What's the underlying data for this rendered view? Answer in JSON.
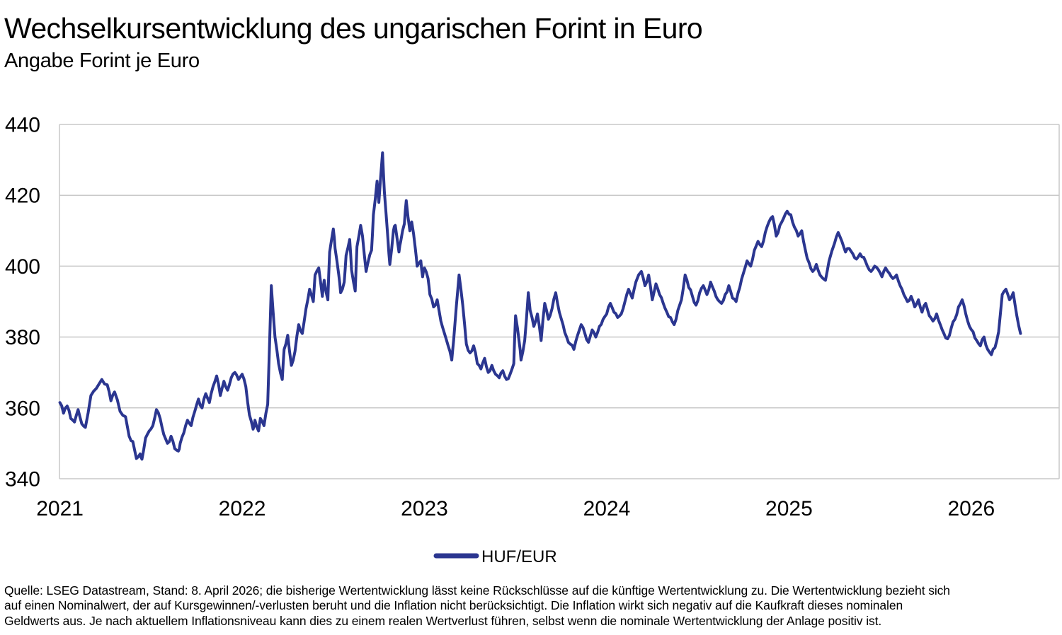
{
  "header": {
    "title": "Wechselkursentwicklung des ungarischen Forint in Euro",
    "subtitle": "Angabe Forint je Euro"
  },
  "legend": {
    "label": "HUF/EUR",
    "position": "bottom"
  },
  "colors": {
    "line": "#2b3690",
    "grid": "#c9c9c9",
    "text": "#000000",
    "background": "#ffffff"
  },
  "footer": {
    "lines": [
      "Quelle: LSEG Datastream, Stand: 8. April 2026; die bisherige Wertentwicklung lässt keine Rückschlüsse auf die künftige Wertentwicklung zu. Die Wertentwicklung bezieht sich",
      "auf einen Nominalwert, der auf Kursgewinnen/-verlusten beruht und die Inflation nicht berücksichtigt. Die Inflation wirkt sich negativ auf die Kaufkraft dieses nominalen",
      "Geldwerts aus. Je nach aktuellem Inflationsniveau kann dies zu einem realen Wertverlust führen, selbst wenn die nominale Wertentwicklung der Anlage positiv ist."
    ]
  },
  "chart_data": {
    "type": "line",
    "title": "Wechselkursentwicklung des ungarischen Forint in Euro",
    "subtitle": "Angabe Forint je Euro",
    "xlabel": "",
    "ylabel": "Forint je Euro",
    "ylim": [
      340,
      440
    ],
    "yticks": [
      340,
      360,
      380,
      400,
      420,
      440
    ],
    "xlim": [
      2021.0,
      2026.48
    ],
    "xticks": [
      2021,
      2022,
      2023,
      2024,
      2025,
      2026
    ],
    "grid": "horizontal",
    "legend_position": "bottom-center",
    "series": [
      {
        "name": "HUF/EUR",
        "color": "#2b3690",
        "points": [
          [
            2021.0,
            361.5
          ],
          [
            2021.02,
            358.5
          ],
          [
            2021.04,
            360.5
          ],
          [
            2021.06,
            357.0
          ],
          [
            2021.08,
            356.0
          ],
          [
            2021.1,
            359.5
          ],
          [
            2021.12,
            355.5
          ],
          [
            2021.14,
            354.5
          ],
          [
            2021.17,
            363.5
          ],
          [
            2021.2,
            365.5
          ],
          [
            2021.23,
            368.0
          ],
          [
            2021.26,
            366.5
          ],
          [
            2021.28,
            362.0
          ],
          [
            2021.3,
            364.5
          ],
          [
            2021.33,
            359.0
          ],
          [
            2021.36,
            357.5
          ],
          [
            2021.38,
            352.0
          ],
          [
            2021.4,
            350.5
          ],
          [
            2021.42,
            345.7
          ],
          [
            2021.44,
            347.0
          ],
          [
            2021.45,
            345.5
          ],
          [
            2021.47,
            351.5
          ],
          [
            2021.49,
            353.5
          ],
          [
            2021.51,
            355.0
          ],
          [
            2021.53,
            359.5
          ],
          [
            2021.55,
            357.0
          ],
          [
            2021.57,
            352.5
          ],
          [
            2021.59,
            350.0
          ],
          [
            2021.61,
            352.0
          ],
          [
            2021.63,
            348.5
          ],
          [
            2021.65,
            347.8
          ],
          [
            2021.66,
            350.0
          ],
          [
            2021.68,
            353.0
          ],
          [
            2021.7,
            356.5
          ],
          [
            2021.72,
            355.0
          ],
          [
            2021.74,
            359.0
          ],
          [
            2021.76,
            362.5
          ],
          [
            2021.78,
            360.0
          ],
          [
            2021.8,
            364.0
          ],
          [
            2021.82,
            361.5
          ],
          [
            2021.84,
            366.0
          ],
          [
            2021.86,
            369.0
          ],
          [
            2021.88,
            363.5
          ],
          [
            2021.9,
            367.5
          ],
          [
            2021.92,
            365.0
          ],
          [
            2021.94,
            368.5
          ],
          [
            2021.96,
            370.0
          ],
          [
            2021.98,
            368.0
          ],
          [
            2022.0,
            369.5
          ],
          [
            2022.02,
            366.0
          ],
          [
            2022.04,
            358.0
          ],
          [
            2022.06,
            354.0
          ],
          [
            2022.07,
            356.5
          ],
          [
            2022.09,
            353.5
          ],
          [
            2022.1,
            357.0
          ],
          [
            2022.12,
            355.0
          ],
          [
            2022.14,
            361.0
          ],
          [
            2022.16,
            394.5
          ],
          [
            2022.18,
            380.0
          ],
          [
            2022.2,
            372.5
          ],
          [
            2022.22,
            368.0
          ],
          [
            2022.23,
            376.5
          ],
          [
            2022.25,
            380.5
          ],
          [
            2022.27,
            372.0
          ],
          [
            2022.29,
            376.0
          ],
          [
            2022.31,
            383.5
          ],
          [
            2022.33,
            381.0
          ],
          [
            2022.35,
            388.0
          ],
          [
            2022.37,
            393.5
          ],
          [
            2022.39,
            390.0
          ],
          [
            2022.4,
            397.5
          ],
          [
            2022.42,
            399.5
          ],
          [
            2022.44,
            391.5
          ],
          [
            2022.45,
            396.0
          ],
          [
            2022.47,
            390.5
          ],
          [
            2022.48,
            404.0
          ],
          [
            2022.5,
            410.5
          ],
          [
            2022.51,
            405.0
          ],
          [
            2022.53,
            397.5
          ],
          [
            2022.54,
            392.5
          ],
          [
            2022.56,
            395.5
          ],
          [
            2022.57,
            403.0
          ],
          [
            2022.59,
            407.5
          ],
          [
            2022.6,
            399.0
          ],
          [
            2022.62,
            393.0
          ],
          [
            2022.63,
            405.5
          ],
          [
            2022.65,
            411.5
          ],
          [
            2022.66,
            408.5
          ],
          [
            2022.68,
            398.5
          ],
          [
            2022.69,
            401.0
          ],
          [
            2022.71,
            404.5
          ],
          [
            2022.72,
            414.5
          ],
          [
            2022.74,
            424.0
          ],
          [
            2022.75,
            418.0
          ],
          [
            2022.77,
            432.0
          ],
          [
            2022.78,
            421.0
          ],
          [
            2022.8,
            407.5
          ],
          [
            2022.81,
            400.5
          ],
          [
            2022.83,
            410.0
          ],
          [
            2022.84,
            411.5
          ],
          [
            2022.86,
            404.0
          ],
          [
            2022.87,
            407.0
          ],
          [
            2022.89,
            412.0
          ],
          [
            2022.9,
            418.5
          ],
          [
            2022.92,
            410.0
          ],
          [
            2022.93,
            412.5
          ],
          [
            2022.95,
            405.0
          ],
          [
            2022.96,
            400.0
          ],
          [
            2022.98,
            401.5
          ],
          [
            2022.99,
            397.0
          ],
          [
            2023.0,
            399.5
          ],
          [
            2023.02,
            396.5
          ],
          [
            2023.03,
            392.0
          ],
          [
            2023.05,
            388.5
          ],
          [
            2023.07,
            390.5
          ],
          [
            2023.09,
            384.5
          ],
          [
            2023.11,
            381.0
          ],
          [
            2023.13,
            377.5
          ],
          [
            2023.15,
            373.5
          ],
          [
            2023.16,
            379.0
          ],
          [
            2023.19,
            397.5
          ],
          [
            2023.21,
            389.0
          ],
          [
            2023.23,
            378.0
          ],
          [
            2023.25,
            375.5
          ],
          [
            2023.27,
            377.5
          ],
          [
            2023.29,
            372.5
          ],
          [
            2023.31,
            371.0
          ],
          [
            2023.33,
            374.0
          ],
          [
            2023.35,
            370.0
          ],
          [
            2023.37,
            372.0
          ],
          [
            2023.39,
            369.5
          ],
          [
            2023.41,
            368.5
          ],
          [
            2023.43,
            370.5
          ],
          [
            2023.45,
            368.0
          ],
          [
            2023.47,
            369.5
          ],
          [
            2023.49,
            372.5
          ],
          [
            2023.5,
            386.0
          ],
          [
            2023.52,
            378.5
          ],
          [
            2023.53,
            373.5
          ],
          [
            2023.55,
            379.0
          ],
          [
            2023.57,
            392.5
          ],
          [
            2023.58,
            387.5
          ],
          [
            2023.6,
            383.0
          ],
          [
            2023.62,
            386.5
          ],
          [
            2023.64,
            379.0
          ],
          [
            2023.66,
            389.5
          ],
          [
            2023.68,
            385.0
          ],
          [
            2023.7,
            388.0
          ],
          [
            2023.72,
            392.5
          ],
          [
            2023.74,
            387.0
          ],
          [
            2023.76,
            383.5
          ],
          [
            2023.78,
            380.0
          ],
          [
            2023.8,
            378.0
          ],
          [
            2023.82,
            376.5
          ],
          [
            2023.84,
            380.5
          ],
          [
            2023.86,
            383.5
          ],
          [
            2023.88,
            381.0
          ],
          [
            2023.9,
            378.5
          ],
          [
            2023.92,
            382.0
          ],
          [
            2023.94,
            380.0
          ],
          [
            2023.96,
            383.0
          ],
          [
            2023.98,
            385.0
          ],
          [
            2024.0,
            386.5
          ],
          [
            2024.02,
            389.5
          ],
          [
            2024.04,
            387.0
          ],
          [
            2024.06,
            385.5
          ],
          [
            2024.08,
            386.5
          ],
          [
            2024.1,
            390.0
          ],
          [
            2024.12,
            393.5
          ],
          [
            2024.14,
            391.0
          ],
          [
            2024.16,
            395.5
          ],
          [
            2024.19,
            398.5
          ],
          [
            2024.21,
            394.5
          ],
          [
            2024.23,
            397.5
          ],
          [
            2024.25,
            390.5
          ],
          [
            2024.27,
            395.0
          ],
          [
            2024.29,
            392.0
          ],
          [
            2024.31,
            389.5
          ],
          [
            2024.33,
            387.0
          ],
          [
            2024.35,
            385.5
          ],
          [
            2024.37,
            383.5
          ],
          [
            2024.39,
            387.5
          ],
          [
            2024.41,
            390.5
          ],
          [
            2024.43,
            397.5
          ],
          [
            2024.45,
            394.0
          ],
          [
            2024.47,
            391.5
          ],
          [
            2024.49,
            389.0
          ],
          [
            2024.51,
            392.5
          ],
          [
            2024.53,
            394.5
          ],
          [
            2024.55,
            392.0
          ],
          [
            2024.57,
            395.5
          ],
          [
            2024.59,
            393.0
          ],
          [
            2024.61,
            390.5
          ],
          [
            2024.63,
            389.5
          ],
          [
            2024.65,
            392.0
          ],
          [
            2024.67,
            394.5
          ],
          [
            2024.69,
            391.0
          ],
          [
            2024.71,
            390.0
          ],
          [
            2024.73,
            394.0
          ],
          [
            2024.75,
            398.0
          ],
          [
            2024.77,
            401.5
          ],
          [
            2024.79,
            400.0
          ],
          [
            2024.81,
            404.5
          ],
          [
            2024.83,
            407.0
          ],
          [
            2024.85,
            405.5
          ],
          [
            2024.87,
            409.5
          ],
          [
            2024.89,
            412.5
          ],
          [
            2024.91,
            414.0
          ],
          [
            2024.93,
            408.5
          ],
          [
            2024.95,
            411.5
          ],
          [
            2024.97,
            413.5
          ],
          [
            2024.99,
            415.5
          ],
          [
            2025.01,
            414.5
          ],
          [
            2025.03,
            411.0
          ],
          [
            2025.05,
            408.5
          ],
          [
            2025.07,
            410.0
          ],
          [
            2025.09,
            404.5
          ],
          [
            2025.11,
            401.0
          ],
          [
            2025.13,
            398.5
          ],
          [
            2025.15,
            400.5
          ],
          [
            2025.17,
            397.5
          ],
          [
            2025.2,
            396.0
          ],
          [
            2025.22,
            401.5
          ],
          [
            2025.25,
            406.5
          ],
          [
            2025.27,
            409.5
          ],
          [
            2025.29,
            407.0
          ],
          [
            2025.31,
            404.0
          ],
          [
            2025.33,
            405.0
          ],
          [
            2025.35,
            403.5
          ],
          [
            2025.37,
            402.0
          ],
          [
            2025.39,
            403.5
          ],
          [
            2025.41,
            402.5
          ],
          [
            2025.43,
            400.0
          ],
          [
            2025.45,
            398.5
          ],
          [
            2025.47,
            400.0
          ],
          [
            2025.49,
            399.0
          ],
          [
            2025.51,
            397.0
          ],
          [
            2025.53,
            399.5
          ],
          [
            2025.55,
            398.0
          ],
          [
            2025.57,
            396.5
          ],
          [
            2025.59,
            397.5
          ],
          [
            2025.61,
            394.5
          ],
          [
            2025.63,
            392.0
          ],
          [
            2025.65,
            390.0
          ],
          [
            2025.67,
            391.5
          ],
          [
            2025.69,
            388.5
          ],
          [
            2025.71,
            390.5
          ],
          [
            2025.73,
            387.0
          ],
          [
            2025.75,
            389.5
          ],
          [
            2025.77,
            386.0
          ],
          [
            2025.79,
            384.5
          ],
          [
            2025.81,
            386.5
          ],
          [
            2025.83,
            383.5
          ],
          [
            2025.85,
            381.0
          ],
          [
            2025.87,
            379.5
          ],
          [
            2025.89,
            382.5
          ],
          [
            2025.91,
            385.0
          ],
          [
            2025.93,
            388.5
          ],
          [
            2025.95,
            390.5
          ],
          [
            2025.97,
            386.5
          ],
          [
            2025.99,
            383.0
          ],
          [
            2026.01,
            381.5
          ],
          [
            2026.03,
            379.0
          ],
          [
            2026.05,
            377.5
          ],
          [
            2026.07,
            380.0
          ],
          [
            2026.09,
            376.5
          ],
          [
            2026.11,
            375.0
          ],
          [
            2026.13,
            377.0
          ],
          [
            2026.15,
            381.5
          ],
          [
            2026.17,
            392.0
          ],
          [
            2026.19,
            393.5
          ],
          [
            2026.21,
            390.5
          ],
          [
            2026.23,
            392.5
          ],
          [
            2026.25,
            386.0
          ],
          [
            2026.27,
            381.0
          ]
        ]
      }
    ]
  }
}
